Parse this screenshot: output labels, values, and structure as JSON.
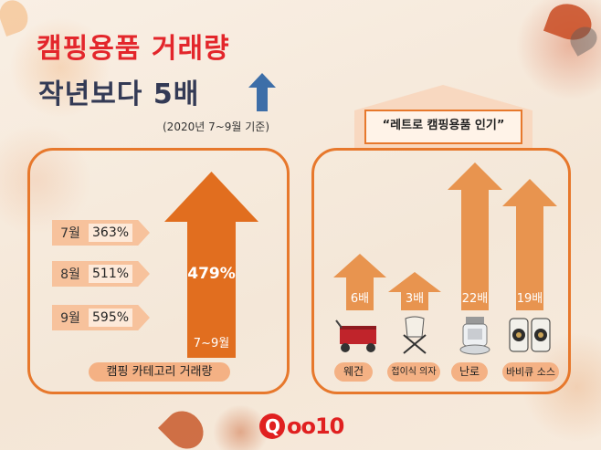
{
  "headline": {
    "line1": "캠핑용품 거래량",
    "line2": "작년보다 5배"
  },
  "basis": "(2020년 7~9월 기준)",
  "category": {
    "months": [
      {
        "month": "7월",
        "pct": "363%"
      },
      {
        "month": "8월",
        "pct": "511%"
      },
      {
        "month": "9월",
        "pct": "595%"
      }
    ],
    "total_pct": "479%",
    "period": "7~9월",
    "label": "캠핑 카테고리 거래량"
  },
  "retro": {
    "banner": "“레트로 캠핑용품 인기”",
    "products": [
      {
        "name": "웨건",
        "multiplier": "6배",
        "value": 6,
        "icon": "wagon-icon"
      },
      {
        "name": "접이식 의자",
        "multiplier": "3배",
        "value": 3,
        "icon": "folding-chair-icon"
      },
      {
        "name": "난로",
        "multiplier": "22배",
        "value": 22,
        "icon": "heater-icon"
      },
      {
        "name": "바비큐 소스",
        "multiplier": "19배",
        "value": 19,
        "icon": "bbq-sauce-icon"
      }
    ]
  },
  "brand": {
    "logo_text": "oo10"
  },
  "colors": {
    "accent_red": "#e3262b",
    "navy": "#333a55",
    "orange": "#e7782c",
    "peach": "#f4b184"
  }
}
